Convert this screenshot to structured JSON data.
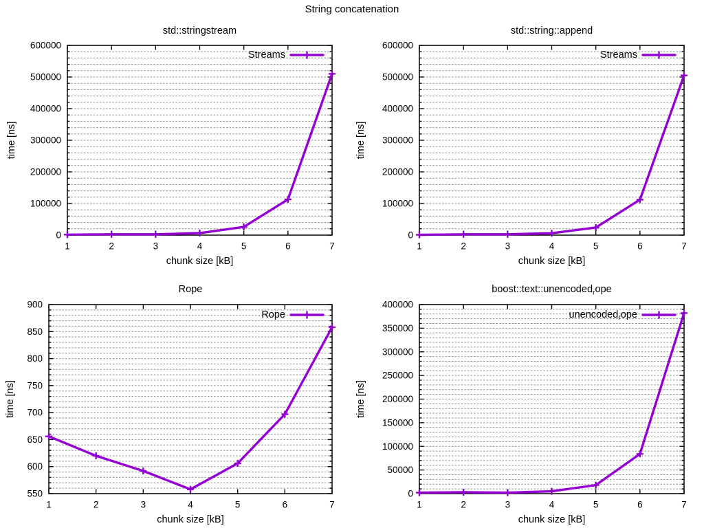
{
  "title": "String concatenation",
  "style": {
    "line_color": "#9400d3",
    "grid_color": "#8a8a8a",
    "border_color": "#000000",
    "text_color": "#000000",
    "background": "#ffffff",
    "marker": "plus"
  },
  "xlabel": "chunk size [kB]",
  "ylabel": "time [ns]",
  "chart_data": [
    {
      "type": "line",
      "position": "top-left",
      "title": "std::stringstream",
      "xlabel": "chunk size [kB]",
      "ylabel": "time [ns]",
      "x": [
        1,
        2,
        3,
        4,
        5,
        6,
        7
      ],
      "series": [
        {
          "name": "Streams",
          "values": [
            1500,
            2500,
            2500,
            6500,
            26000,
            113000,
            510000
          ]
        }
      ],
      "xlim": [
        1,
        7
      ],
      "ylim": [
        0,
        600000
      ],
      "xticks": [
        1,
        2,
        3,
        4,
        5,
        6,
        7
      ],
      "yticks": [
        0,
        100000,
        200000,
        300000,
        400000,
        500000,
        600000
      ],
      "yminor_step": 20000,
      "grid": "horizontal dashed, major+minor",
      "legend_position": "top-right inside"
    },
    {
      "type": "line",
      "position": "top-right",
      "title": "std::string::append",
      "xlabel": "chunk size [kB]",
      "ylabel": "time [ns]",
      "x": [
        1,
        2,
        3,
        4,
        5,
        6,
        7
      ],
      "series": [
        {
          "name": "Streams",
          "values": [
            1000,
            2500,
            2500,
            6000,
            24000,
            112000,
            505000
          ]
        }
      ],
      "xlim": [
        1,
        7
      ],
      "ylim": [
        0,
        600000
      ],
      "xticks": [
        1,
        2,
        3,
        4,
        5,
        6,
        7
      ],
      "yticks": [
        0,
        100000,
        200000,
        300000,
        400000,
        500000,
        600000
      ],
      "yminor_step": 20000,
      "grid": "horizontal dashed, major+minor",
      "legend_position": "top-right inside"
    },
    {
      "type": "line",
      "position": "bottom-left",
      "title": "Rope",
      "xlabel": "chunk size [kB]",
      "ylabel": "time [ns]",
      "x": [
        1,
        2,
        3,
        4,
        5,
        6,
        7
      ],
      "series": [
        {
          "name": "Rope",
          "values": [
            656,
            620,
            592,
            558,
            606,
            697,
            858
          ]
        }
      ],
      "xlim": [
        1,
        7
      ],
      "ylim": [
        550,
        900
      ],
      "xticks": [
        1,
        2,
        3,
        4,
        5,
        6,
        7
      ],
      "yticks": [
        550,
        600,
        650,
        700,
        750,
        800,
        850,
        900
      ],
      "yminor_step": 10,
      "grid": "horizontal dashed, major+minor",
      "legend_position": "top-right inside"
    },
    {
      "type": "line",
      "position": "bottom-right",
      "title_parts": [
        {
          "text": "boost::text::unencoded",
          "sub": false
        },
        {
          "text": "r",
          "sub": true
        },
        {
          "text": "ope",
          "sub": false
        }
      ],
      "xlabel": "chunk size [kB]",
      "ylabel": "time [ns]",
      "x": [
        1,
        2,
        3,
        4,
        5,
        6,
        7
      ],
      "series": [
        {
          "name_parts": [
            {
              "text": "unencoded",
              "sub": false
            },
            {
              "text": "r",
              "sub": true
            },
            {
              "text": "ope",
              "sub": false
            }
          ],
          "values": [
            2000,
            3000,
            2000,
            5000,
            18000,
            84000,
            382000
          ]
        }
      ],
      "xlim": [
        1,
        7
      ],
      "ylim": [
        0,
        400000
      ],
      "xticks": [
        1,
        2,
        3,
        4,
        5,
        6,
        7
      ],
      "yticks": [
        0,
        50000,
        100000,
        150000,
        200000,
        250000,
        300000,
        350000,
        400000
      ],
      "yminor_step": 10000,
      "grid": "horizontal dashed, major+minor",
      "legend_position": "top-right inside"
    }
  ]
}
